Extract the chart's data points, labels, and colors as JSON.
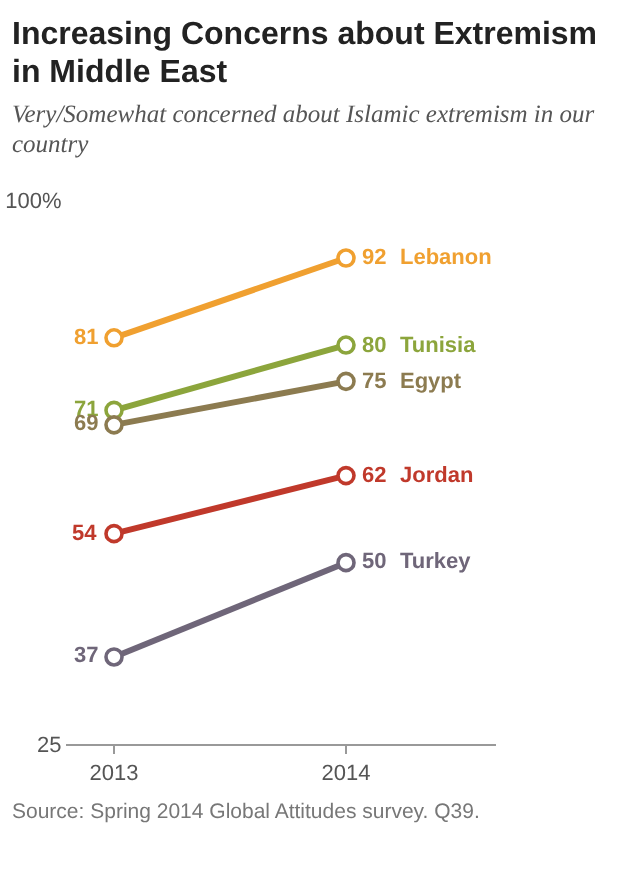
{
  "chart_data": {
    "type": "line",
    "title": "Increasing Concerns about Extremism in Middle East",
    "subtitle": "Very/Somewhat concerned about Islamic extremism in our country",
    "categories": [
      "2013",
      "2014"
    ],
    "series": [
      {
        "name": "Lebanon",
        "color": "#f0a030",
        "values": [
          81,
          92
        ]
      },
      {
        "name": "Tunisia",
        "color": "#8ca53c",
        "values": [
          71,
          80
        ]
      },
      {
        "name": "Egypt",
        "color": "#8c7b50",
        "values": [
          69,
          75
        ]
      },
      {
        "name": "Jordan",
        "color": "#c0392b",
        "values": [
          54,
          62
        ]
      },
      {
        "name": "Turkey",
        "color": "#6f6679",
        "values": [
          37,
          50
        ]
      }
    ],
    "ylim": [
      25,
      100
    ],
    "yticks": [
      {
        "value": 25,
        "label": "25"
      },
      {
        "value": 100,
        "label": "100%"
      }
    ],
    "grid": false,
    "legend": false,
    "marker": "circle",
    "line_style": "solid",
    "data_labels": true,
    "annotations": [
      "Source: Spring 2014 Global Attitudes survey. Q39."
    ]
  }
}
